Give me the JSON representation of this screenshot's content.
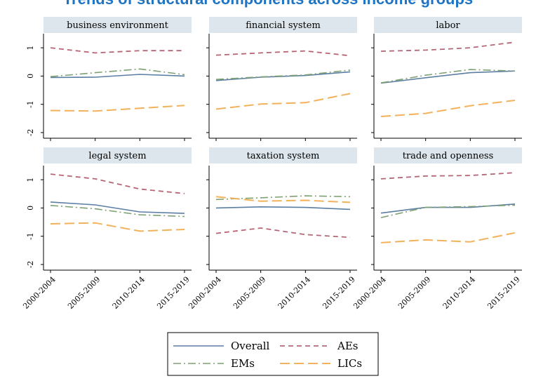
{
  "title": "Trends of structural components across income groups",
  "colors": {
    "Overall": "#5b7ea3",
    "AEs": "#b56576",
    "EMs": "#7ea072",
    "LICs": "#f2b25c",
    "panel_header": "#dde6ec"
  },
  "chart_data": {
    "type": "line",
    "categories": [
      "2000-2004",
      "2005-2009",
      "2010-2014",
      "2015-2019"
    ],
    "ylim": [
      -2.2,
      1.5
    ],
    "yticks": [
      -2,
      -1,
      0,
      1
    ],
    "grid": false,
    "legend_position": "bottom",
    "legend": [
      "Overall",
      "AEs",
      "EMs",
      "LICs"
    ],
    "panels": [
      {
        "title": "business environment",
        "series": [
          {
            "name": "Overall",
            "values": [
              -0.05,
              -0.04,
              0.06,
              0.0
            ]
          },
          {
            "name": "AEs",
            "values": [
              1.0,
              0.82,
              0.9,
              0.9
            ]
          },
          {
            "name": "EMs",
            "values": [
              -0.02,
              0.12,
              0.25,
              0.05
            ]
          },
          {
            "name": "LICs",
            "values": [
              -1.22,
              -1.24,
              -1.14,
              -1.04
            ]
          }
        ]
      },
      {
        "title": "financial system",
        "series": [
          {
            "name": "Overall",
            "values": [
              -0.16,
              -0.04,
              0.02,
              0.15
            ]
          },
          {
            "name": "AEs",
            "values": [
              0.74,
              0.82,
              0.89,
              0.72
            ]
          },
          {
            "name": "EMs",
            "values": [
              -0.12,
              -0.03,
              0.04,
              0.21
            ]
          },
          {
            "name": "LICs",
            "values": [
              -1.17,
              -0.99,
              -0.94,
              -0.62
            ]
          }
        ]
      },
      {
        "title": "labor",
        "series": [
          {
            "name": "Overall",
            "values": [
              -0.25,
              -0.06,
              0.12,
              0.18
            ]
          },
          {
            "name": "AEs",
            "values": [
              0.88,
              0.92,
              1.0,
              1.2
            ]
          },
          {
            "name": "EMs",
            "values": [
              -0.24,
              0.03,
              0.23,
              0.18
            ]
          },
          {
            "name": "LICs",
            "values": [
              -1.43,
              -1.32,
              -1.05,
              -0.86
            ]
          }
        ]
      },
      {
        "title": "legal system",
        "series": [
          {
            "name": "Overall",
            "values": [
              0.21,
              0.11,
              -0.14,
              -0.19
            ]
          },
          {
            "name": "AEs",
            "values": [
              1.2,
              1.03,
              0.67,
              0.51
            ]
          },
          {
            "name": "EMs",
            "values": [
              0.09,
              -0.03,
              -0.24,
              -0.3
            ]
          },
          {
            "name": "LICs",
            "values": [
              -0.56,
              -0.53,
              -0.82,
              -0.76
            ]
          }
        ]
      },
      {
        "title": "taxation system",
        "series": [
          {
            "name": "Overall",
            "values": [
              0.0,
              0.04,
              0.02,
              -0.05
            ]
          },
          {
            "name": "AEs",
            "values": [
              -0.9,
              -0.71,
              -0.94,
              -1.04
            ]
          },
          {
            "name": "EMs",
            "values": [
              0.3,
              0.36,
              0.43,
              0.4
            ]
          },
          {
            "name": "LICs",
            "values": [
              0.4,
              0.24,
              0.27,
              0.2
            ]
          }
        ]
      },
      {
        "title": "trade and openness",
        "series": [
          {
            "name": "Overall",
            "values": [
              -0.18,
              0.02,
              0.02,
              0.14
            ]
          },
          {
            "name": "AEs",
            "values": [
              1.03,
              1.13,
              1.15,
              1.25
            ]
          },
          {
            "name": "EMs",
            "values": [
              -0.34,
              0.02,
              0.05,
              0.1
            ]
          },
          {
            "name": "LICs",
            "values": [
              -1.23,
              -1.13,
              -1.2,
              -0.88
            ]
          }
        ]
      }
    ]
  }
}
